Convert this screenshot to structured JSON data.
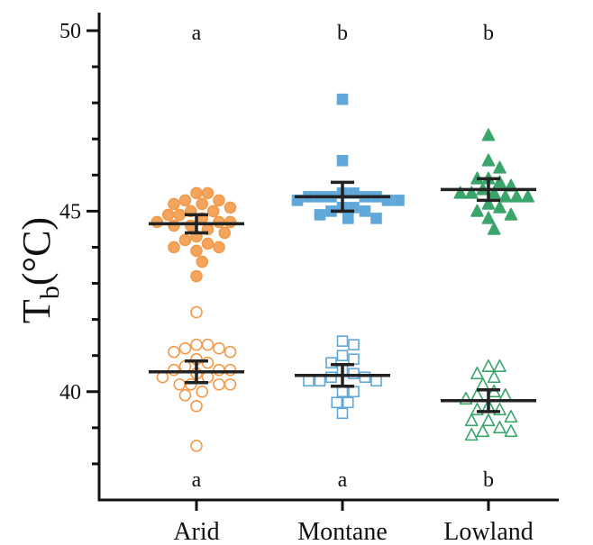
{
  "chart_data": {
    "type": "scatter",
    "ylabel": {
      "main": "T",
      "sub": "b",
      "unit": "(°C)"
    },
    "ylim": [
      37,
      50.4
    ],
    "yticks_major": [
      40,
      45,
      50
    ],
    "yticks_minor": [
      38,
      39,
      41,
      42,
      43,
      44,
      46,
      47,
      48,
      49
    ],
    "grid": false,
    "categories": [
      "Arid",
      "Montane",
      "Lowland"
    ],
    "colors": {
      "Arid": "#f29a4b",
      "Montane": "#5fa8d9",
      "Lowland": "#3aa56a"
    },
    "markers": {
      "Arid": "circle",
      "Montane": "square",
      "Lowland": "triangle"
    },
    "series": [
      {
        "group": "upper",
        "filled": true,
        "letters": [
          "a",
          "b",
          "b"
        ],
        "points": [
          [
            45.5,
            45.5,
            45.3,
            45.3,
            45.2,
            45.2,
            45.1,
            45.0,
            45.0,
            44.9,
            44.9,
            44.8,
            44.7,
            44.7,
            44.7,
            44.6,
            44.6,
            44.5,
            44.4,
            44.3,
            44.2,
            44.1,
            44.0,
            44.0,
            43.9,
            43.6,
            43.2
          ],
          [
            48.1,
            46.4,
            45.5,
            45.5,
            45.4,
            45.4,
            45.4,
            45.4,
            45.4,
            45.3,
            45.3,
            45.3,
            45.1,
            45.1,
            45.0,
            45.0,
            44.9,
            44.8,
            44.8
          ],
          [
            47.1,
            46.4,
            46.2,
            45.9,
            45.9,
            45.8,
            45.7,
            45.6,
            45.5,
            45.5,
            45.5,
            45.4,
            45.4,
            45.4,
            45.2,
            45.1,
            45.0,
            44.9,
            44.8,
            44.5
          ]
        ],
        "mean": [
          44.65,
          45.4,
          45.6
        ],
        "error": [
          [
            44.4,
            44.9
          ],
          [
            45.0,
            45.8
          ],
          [
            45.3,
            45.9
          ]
        ]
      },
      {
        "group": "lower",
        "filled": false,
        "letters": [
          "a",
          "a",
          "b"
        ],
        "points": [
          [
            42.2,
            41.3,
            41.3,
            41.2,
            41.2,
            41.1,
            41.1,
            40.9,
            40.8,
            40.7,
            40.6,
            40.6,
            40.6,
            40.5,
            40.4,
            40.4,
            40.2,
            40.2,
            40.2,
            40.2,
            40.0,
            39.9,
            39.6,
            38.5
          ],
          [
            41.4,
            41.3,
            41.0,
            40.9,
            40.8,
            40.6,
            40.5,
            40.4,
            40.4,
            40.3,
            40.3,
            40.3,
            40.0,
            40.0,
            39.7,
            39.7,
            39.4
          ],
          [
            40.7,
            40.7,
            40.5,
            40.4,
            40.2,
            40.0,
            39.9,
            39.9,
            39.8,
            39.6,
            39.5,
            39.5,
            39.3,
            39.2,
            39.2,
            39.0,
            38.9,
            38.9,
            38.8
          ]
        ],
        "mean": [
          40.55,
          40.45,
          39.75
        ],
        "error": [
          [
            40.25,
            40.85
          ],
          [
            40.15,
            40.75
          ],
          [
            39.45,
            40.05
          ]
        ]
      }
    ]
  }
}
